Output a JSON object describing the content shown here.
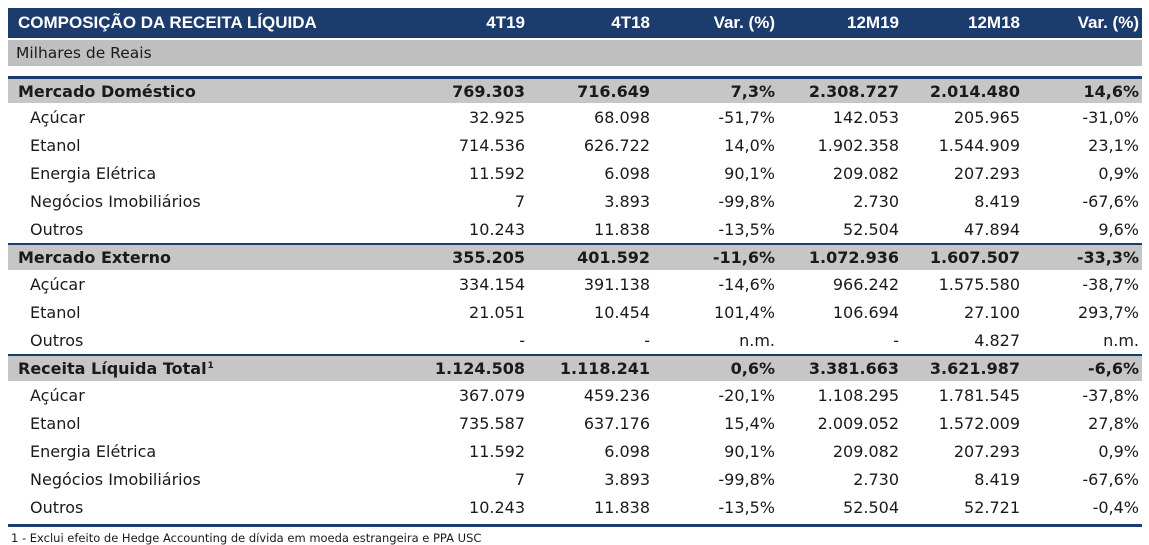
{
  "header": {
    "title": "COMPOSIÇÃO DA RECEITA LÍQUIDA",
    "columns": [
      "4T19",
      "4T18",
      "Var. (%)",
      "12M19",
      "12M18",
      "Var. (%)"
    ]
  },
  "units": "Milhares de Reais",
  "sections": [
    {
      "label": "Mercado Doméstico",
      "sup": "",
      "values": [
        "769.303",
        "716.649",
        "7,3%",
        "2.308.727",
        "2.014.480",
        "14,6%"
      ],
      "items": [
        {
          "label": "Açúcar",
          "values": [
            "32.925",
            "68.098",
            "-51,7%",
            "142.053",
            "205.965",
            "-31,0%"
          ]
        },
        {
          "label": "Etanol",
          "values": [
            "714.536",
            "626.722",
            "14,0%",
            "1.902.358",
            "1.544.909",
            "23,1%"
          ]
        },
        {
          "label": "Energia Elétrica",
          "values": [
            "11.592",
            "6.098",
            "90,1%",
            "209.082",
            "207.293",
            "0,9%"
          ]
        },
        {
          "label": "Negócios Imobiliários",
          "values": [
            "7",
            "3.893",
            "-99,8%",
            "2.730",
            "8.419",
            "-67,6%"
          ]
        },
        {
          "label": "Outros",
          "values": [
            "10.243",
            "11.838",
            "-13,5%",
            "52.504",
            "47.894",
            "9,6%"
          ]
        }
      ]
    },
    {
      "label": "Mercado Externo",
      "sup": "",
      "values": [
        "355.205",
        "401.592",
        "-11,6%",
        "1.072.936",
        "1.607.507",
        "-33,3%"
      ],
      "items": [
        {
          "label": "Açúcar",
          "values": [
            "334.154",
            "391.138",
            "-14,6%",
            "966.242",
            "1.575.580",
            "-38,7%"
          ]
        },
        {
          "label": "Etanol",
          "values": [
            "21.051",
            "10.454",
            "101,4%",
            "106.694",
            "27.100",
            "293,7%"
          ]
        },
        {
          "label": "Outros",
          "values": [
            "-",
            "-",
            "n.m.",
            "-",
            "4.827",
            "n.m."
          ]
        }
      ]
    },
    {
      "label": "Receita Líquida Total",
      "sup": "1",
      "values": [
        "1.124.508",
        "1.118.241",
        "0,6%",
        "3.381.663",
        "3.621.987",
        "-6,6%"
      ],
      "items": [
        {
          "label": "Açúcar",
          "values": [
            "367.079",
            "459.236",
            "-20,1%",
            "1.108.295",
            "1.781.545",
            "-37,8%"
          ]
        },
        {
          "label": "Etanol",
          "values": [
            "735.587",
            "637.176",
            "15,4%",
            "2.009.052",
            "1.572.009",
            "27,8%"
          ]
        },
        {
          "label": "Energia Elétrica",
          "values": [
            "11.592",
            "6.098",
            "90,1%",
            "209.082",
            "207.293",
            "0,9%"
          ]
        },
        {
          "label": "Negócios Imobiliários",
          "values": [
            "7",
            "3.893",
            "-99,8%",
            "2.730",
            "8.419",
            "-67,6%"
          ]
        },
        {
          "label": "Outros",
          "values": [
            "10.243",
            "11.838",
            "-13,5%",
            "52.504",
            "52.721",
            "-0,4%"
          ]
        }
      ]
    }
  ],
  "footnote": "1 - Exclui efeito de Hedge Accounting de dívida em moeda estrangeira e PPA USC"
}
